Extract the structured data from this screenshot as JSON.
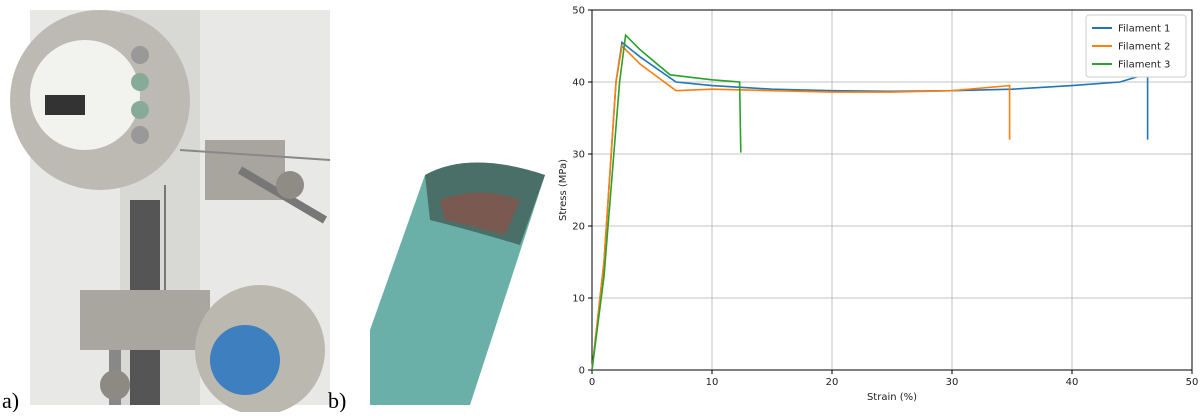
{
  "panel_labels": [
    "a)",
    "b)"
  ],
  "chart_data": {
    "type": "line",
    "xlabel": "Strain (%)",
    "ylabel": "Stress (MPa)",
    "xlim": [
      0,
      50
    ],
    "xticks": [
      0,
      10,
      20,
      30,
      40,
      50
    ],
    "ylim": [
      0,
      50
    ],
    "yticks": [
      0,
      10,
      20,
      30,
      40,
      50
    ],
    "grid": true,
    "legend": "upper-right",
    "series": [
      {
        "name": "Filament 1",
        "color": "#1f77b4",
        "x": [
          0,
          1,
          2,
          2.5,
          4,
          7,
          10,
          15,
          20,
          25,
          30,
          35,
          40,
          44,
          46,
          46.3,
          46.3
        ],
        "values": [
          0,
          15,
          40,
          45.5,
          43.5,
          40,
          39.5,
          39,
          38.8,
          38.7,
          38.8,
          39,
          39.5,
          40,
          41,
          41.2,
          32
        ]
      },
      {
        "name": "Filament 2",
        "color": "#ff7f0e",
        "x": [
          0,
          1,
          2,
          2.5,
          4,
          7,
          10,
          15,
          20,
          25,
          30,
          34.8,
          34.8
        ],
        "values": [
          0,
          15,
          40,
          45,
          42.5,
          38.8,
          39,
          38.8,
          38.6,
          38.6,
          38.8,
          39.5,
          32
        ]
      },
      {
        "name": "Filament 3",
        "color": "#2ca02c",
        "x": [
          0,
          1,
          2.3,
          2.8,
          4,
          6.5,
          10,
          12.3,
          12.4
        ],
        "values": [
          0,
          13,
          40,
          46.5,
          44.5,
          41,
          40.3,
          40,
          30.2
        ]
      }
    ]
  }
}
